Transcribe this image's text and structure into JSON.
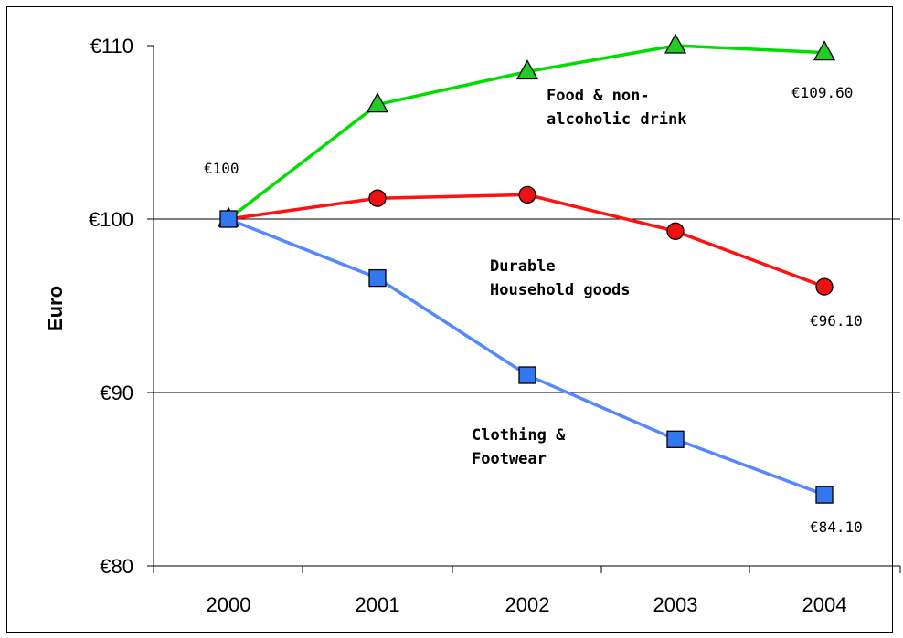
{
  "chart_data": {
    "type": "line",
    "categories": [
      "2000",
      "2001",
      "2002",
      "2003",
      "2004"
    ],
    "ylabel": "Euro",
    "ylim": [
      80,
      110
    ],
    "yticks": [
      80,
      90,
      100,
      110
    ],
    "ytick_labels": [
      "€80",
      "€90",
      "€100",
      "€110"
    ],
    "grid": "horizontal at €90 and €100",
    "series": [
      {
        "name": "Food & non-alcoholic drink",
        "label_lines": [
          "Food & non-",
          "alcoholic drink"
        ],
        "values": [
          100,
          106.6,
          108.5,
          110.0,
          109.6
        ],
        "color": "#00dd00",
        "marker": "triangle",
        "marker_color": "#22cc22",
        "end_label": "€109.60"
      },
      {
        "name": "Durable Household goods",
        "label_lines": [
          "Durable",
          "Household goods"
        ],
        "values": [
          100,
          101.2,
          101.4,
          99.3,
          96.1
        ],
        "color": "#ff1111",
        "marker": "circle",
        "marker_color": "#ee1111",
        "end_label": "€96.10"
      },
      {
        "name": "Clothing & Footwear",
        "label_lines": [
          "Clothing &",
          "Footwear"
        ],
        "values": [
          100,
          96.6,
          91.0,
          87.3,
          84.1
        ],
        "color": "#5588ff",
        "marker": "square",
        "marker_color": "#3377ee",
        "end_label": "€84.10"
      }
    ],
    "start_label": "€100"
  }
}
